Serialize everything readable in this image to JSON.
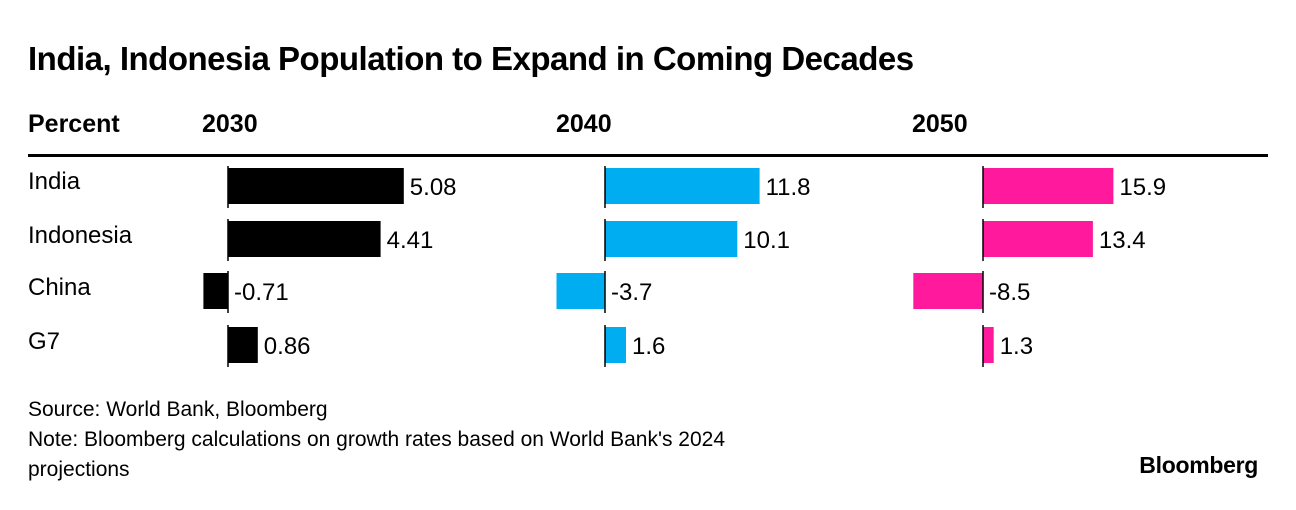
{
  "title": "India, Indonesia Population to Expand in Coming Decades",
  "unit_label": "Percent",
  "source": "Source: World Bank, Bloomberg",
  "note_line1": "Note: Bloomberg calculations on growth rates based on World Bank's 2024",
  "note_line2": "projections",
  "brand": "Bloomberg",
  "chart_data": {
    "type": "bar",
    "orientation": "horizontal",
    "categories": [
      "India",
      "Indonesia",
      "China",
      "G7"
    ],
    "panels": [
      {
        "name": "2030",
        "color": "#000000",
        "values": [
          5.08,
          4.41,
          -0.71,
          0.86
        ],
        "labels": [
          "5.08",
          "4.41",
          "-0.71",
          "0.86"
        ]
      },
      {
        "name": "2040",
        "color": "#00adf0",
        "values": [
          11.8,
          10.1,
          -3.7,
          1.6
        ],
        "labels": [
          "11.8",
          "10.1",
          "-3.7",
          "1.6"
        ]
      },
      {
        "name": "2050",
        "color": "#ff1a9d",
        "values": [
          15.9,
          13.4,
          -8.5,
          1.3
        ],
        "labels": [
          "15.9",
          "13.4",
          "-8.5",
          "1.3"
        ]
      }
    ],
    "unit": "Percent",
    "grid": false,
    "legend": "none"
  }
}
